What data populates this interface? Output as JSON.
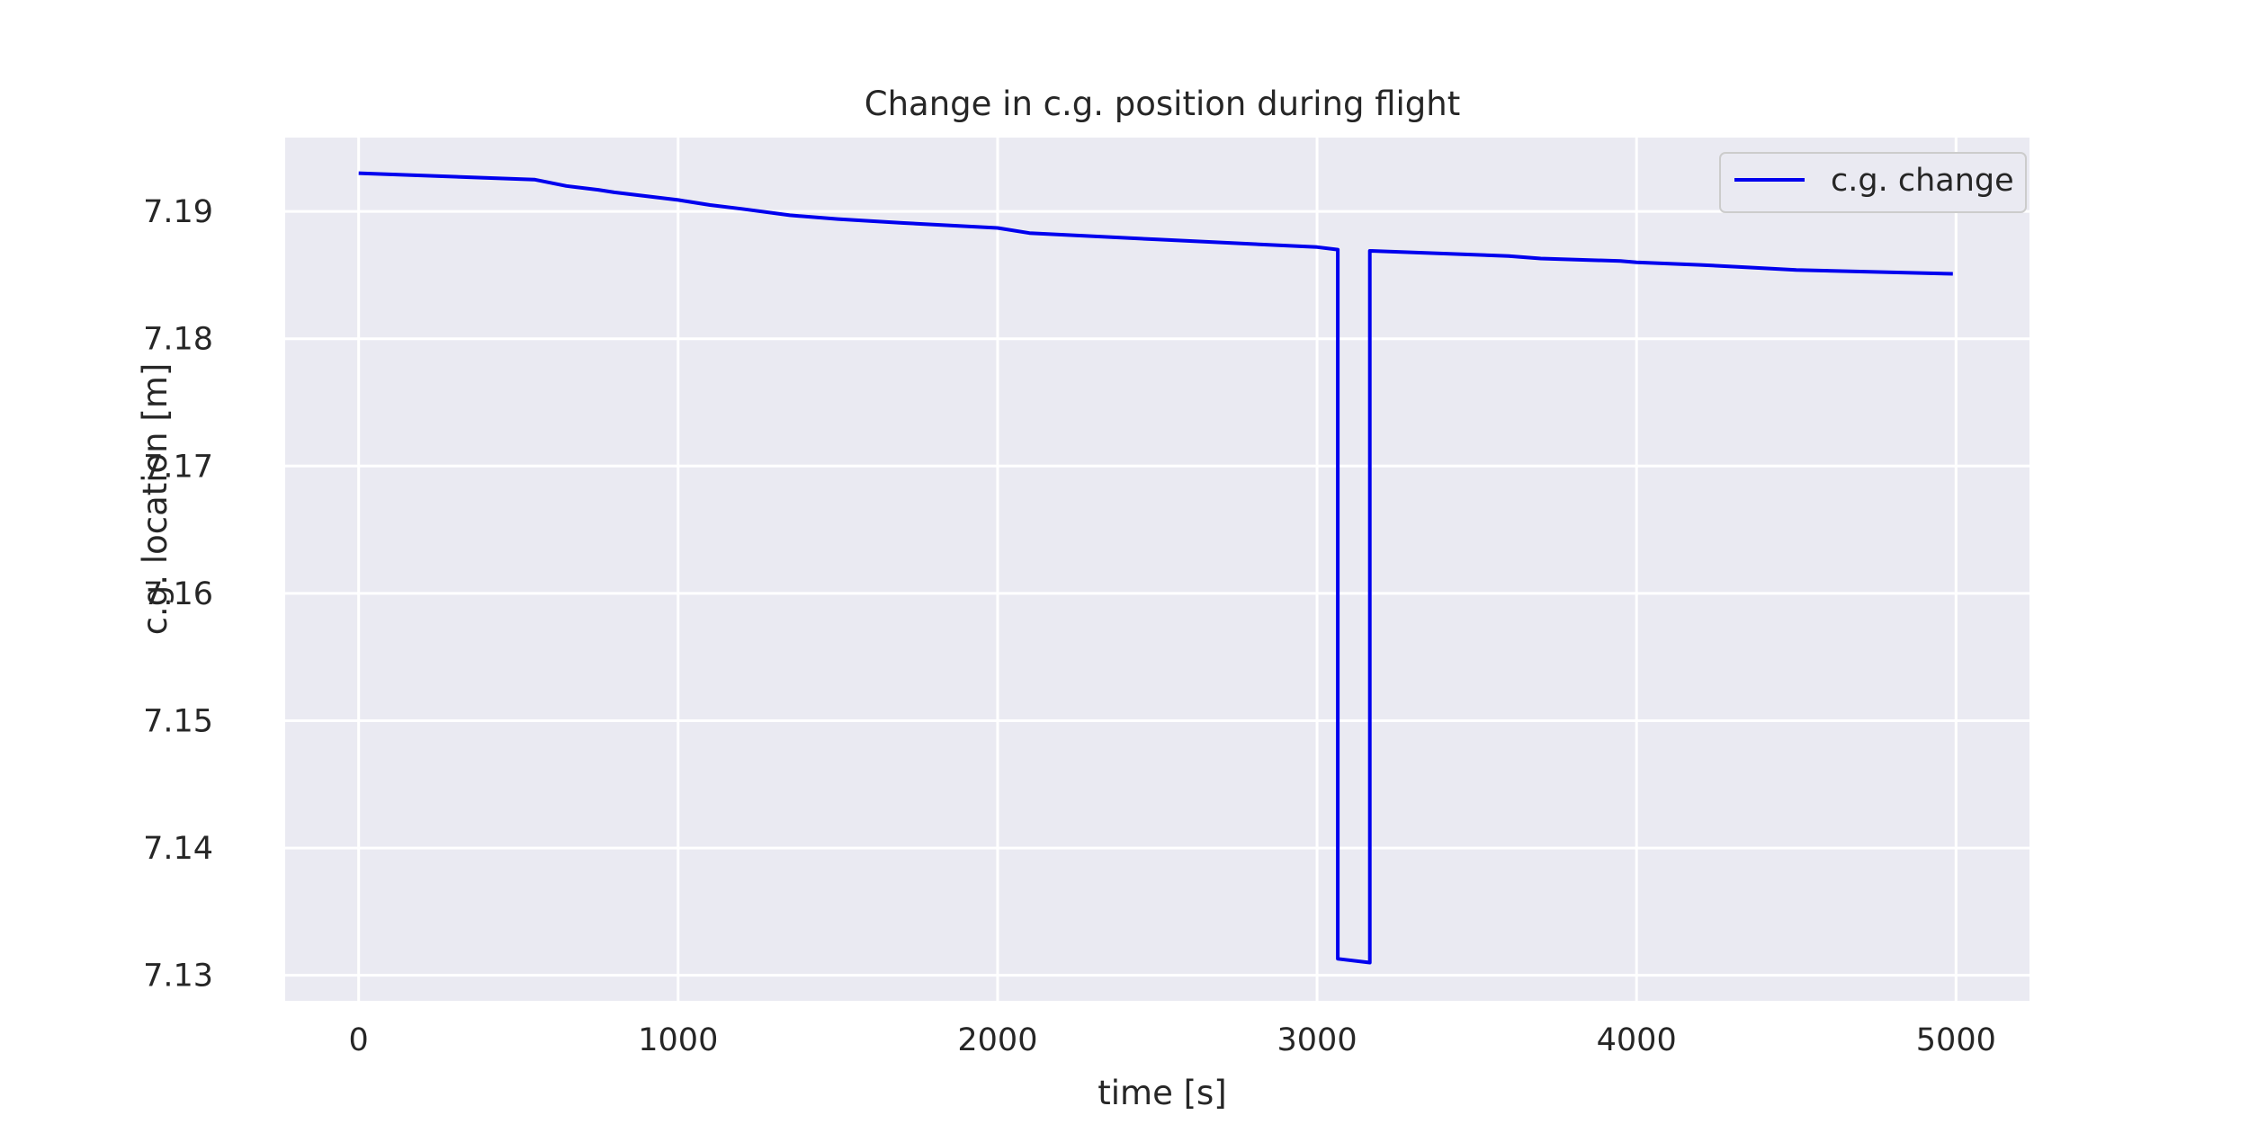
{
  "chart_data": {
    "type": "line",
    "title": "Change in c.g. position during flight",
    "xlabel": "time [s]",
    "ylabel": "c.g. location [m]",
    "xlim": [
      -230,
      5230
    ],
    "ylim": [
      7.128,
      7.1958
    ],
    "xticks": [
      0,
      1000,
      2000,
      3000,
      4000,
      5000
    ],
    "yticks": [
      7.13,
      7.14,
      7.15,
      7.16,
      7.17,
      7.18,
      7.19
    ],
    "ytick_labels": [
      "7.13",
      "7.14",
      "7.15",
      "7.16",
      "7.17",
      "7.18",
      "7.19"
    ],
    "grid": true,
    "legend": {
      "position": "top-right"
    },
    "colors": {
      "background": "#eaeaf2",
      "grid": "#ffffff",
      "line": "#0000ee"
    },
    "series": [
      {
        "name": "c.g. change",
        "x": [
          0,
          550,
          650,
          750,
          800,
          1000,
          1100,
          1200,
          1350,
          1500,
          1700,
          2000,
          2100,
          2500,
          3000,
          3065,
          3065,
          3165,
          3165,
          3600,
          3700,
          3950,
          4000,
          4200,
          4350,
          4500,
          4990
        ],
        "y": [
          7.193,
          7.1925,
          7.192,
          7.1917,
          7.1915,
          7.1909,
          7.1905,
          7.1902,
          7.1897,
          7.1894,
          7.1891,
          7.1887,
          7.1883,
          7.1878,
          7.1872,
          7.187,
          7.1313,
          7.131,
          7.1869,
          7.1865,
          7.1863,
          7.1861,
          7.186,
          7.1858,
          7.1856,
          7.1854,
          7.1851
        ]
      }
    ]
  }
}
